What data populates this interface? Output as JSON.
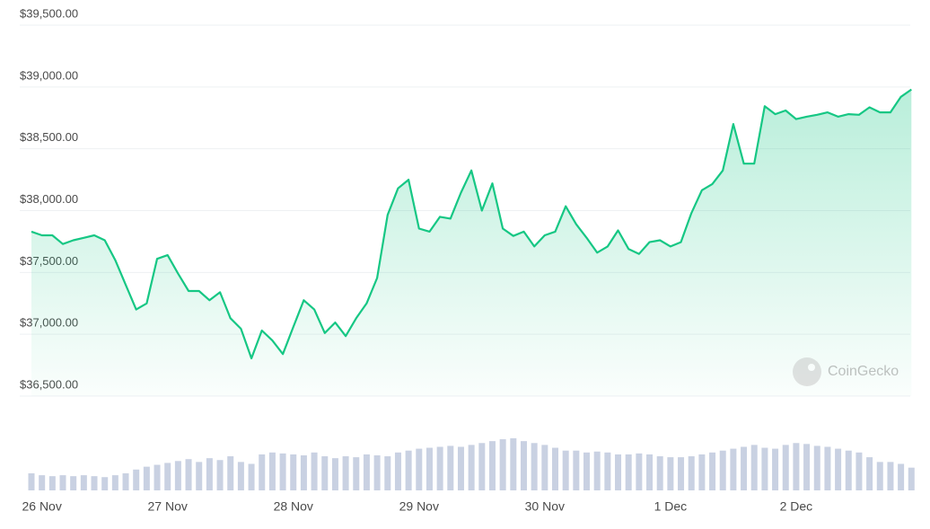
{
  "chart_data": {
    "type": "line",
    "categories": [
      null,
      "26 Nov",
      null,
      null,
      null,
      null,
      null,
      null,
      null,
      null,
      null,
      null,
      null,
      "27 Nov",
      null,
      null,
      null,
      null,
      null,
      null,
      null,
      null,
      null,
      null,
      null,
      "28 Nov",
      null,
      null,
      null,
      null,
      null,
      null,
      null,
      null,
      null,
      null,
      null,
      "29 Nov",
      null,
      null,
      null,
      null,
      null,
      null,
      null,
      null,
      null,
      null,
      null,
      "30 Nov",
      null,
      null,
      null,
      null,
      null,
      null,
      null,
      null,
      null,
      null,
      null,
      "1 Dec",
      null,
      null,
      null,
      null,
      null,
      null,
      null,
      null,
      null,
      null,
      null,
      "2 Dec",
      null,
      null,
      null,
      null,
      null,
      null,
      null,
      null,
      null,
      null,
      null
    ],
    "values": [
      37830,
      37800,
      37800,
      37730,
      37760,
      37780,
      37800,
      37760,
      37600,
      37400,
      37200,
      37250,
      37610,
      37640,
      37490,
      37350,
      37350,
      37275,
      37340,
      37130,
      37045,
      36805,
      37030,
      36950,
      36840,
      37060,
      37275,
      37200,
      37010,
      37095,
      36985,
      37130,
      37250,
      37455,
      37965,
      38180,
      38250,
      37855,
      37830,
      37950,
      37935,
      38145,
      38325,
      38000,
      38220,
      37855,
      37795,
      37830,
      37710,
      37800,
      37830,
      38035,
      37890,
      37780,
      37660,
      37710,
      37840,
      37690,
      37650,
      37745,
      37760,
      37710,
      37745,
      37980,
      38165,
      38215,
      38325,
      38700,
      38380,
      38380,
      38845,
      38780,
      38810,
      38740,
      38760,
      38775,
      38795,
      38760,
      38780,
      38775,
      38835,
      38795,
      38795,
      38920,
      38980
    ],
    "volumes": [
      18,
      16,
      15,
      16,
      15,
      16,
      15,
      14,
      16,
      18,
      22,
      25,
      27,
      29,
      31,
      33,
      30,
      34,
      32,
      36,
      30,
      28,
      38,
      40,
      39,
      38,
      37,
      40,
      36,
      34,
      36,
      35,
      38,
      37,
      36,
      40,
      42,
      44,
      45,
      46,
      47,
      46,
      48,
      50,
      52,
      54,
      55,
      52,
      50,
      48,
      45,
      42,
      42,
      40,
      41,
      40,
      38,
      38,
      39,
      38,
      36,
      35,
      35,
      36,
      38,
      40,
      42,
      44,
      46,
      48,
      45,
      44,
      48,
      50,
      49,
      47,
      46,
      44,
      42,
      40,
      35,
      30,
      30,
      28,
      24
    ],
    "color": "#16c784",
    "ylim": [
      36500,
      39500
    ],
    "yticks": [
      {
        "value": 36500,
        "label": "$36,500.00"
      },
      {
        "value": 37000,
        "label": "$37,000.00"
      },
      {
        "value": 37500,
        "label": "$37,500.00"
      },
      {
        "value": 38000,
        "label": "$38,000.00"
      },
      {
        "value": 38500,
        "label": "$38,500.00"
      },
      {
        "value": 39000,
        "label": "$39,000.00"
      },
      {
        "value": 39500,
        "label": "$39,500.00"
      }
    ],
    "grid": true,
    "watermark": "CoinGecko"
  }
}
